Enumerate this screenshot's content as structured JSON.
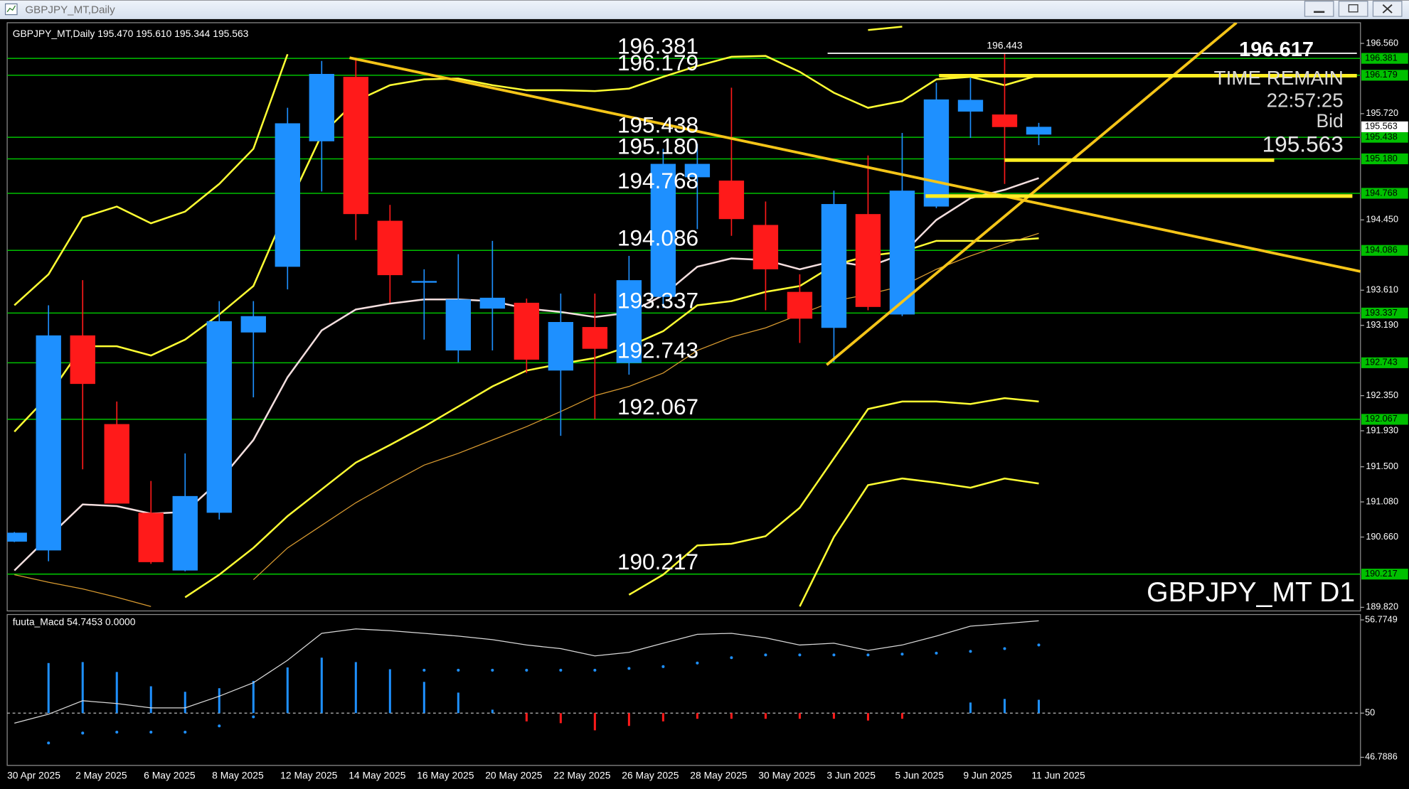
{
  "window": {
    "title": "GBPJPY_MT,Daily"
  },
  "chart_data": [
    {
      "type": "candlestick",
      "title": "GBPJPY_MT,Daily  195.470 195.610 195.344 195.563",
      "categories": [
        "30 Apr 2025",
        null,
        "2 May 2025",
        null,
        "6 May 2025",
        null,
        "8 May 2025",
        null,
        "12 May 2025",
        null,
        "14 May 2025",
        null,
        "16 May 2025",
        null,
        "20 May 2025",
        null,
        "22 May 2025",
        null,
        "26 May 2025",
        null,
        "28 May 2025",
        null,
        "30 May 2025",
        null,
        "3 Jun 2025",
        null,
        "5 Jun 2025",
        null,
        "9 Jun 2025",
        null,
        "11 Jun 2025"
      ],
      "open": [
        190.605,
        190.5,
        193.07,
        192.01,
        190.95,
        190.26,
        190.95,
        193.105,
        193.89,
        195.39,
        196.16,
        194.44,
        193.7,
        192.89,
        193.39,
        193.46,
        192.65,
        193.17,
        192.74,
        193.53,
        194.96,
        194.92,
        194.39,
        193.59,
        193.16,
        194.52,
        193.32,
        194.61,
        195.745,
        195.71,
        195.47
      ],
      "high": [
        190.72,
        193.43,
        193.73,
        192.28,
        191.33,
        191.66,
        193.48,
        193.48,
        195.79,
        196.35,
        196.39,
        194.63,
        193.86,
        194.04,
        194.2,
        193.51,
        193.57,
        193.57,
        194.02,
        195.3,
        195.36,
        196.03,
        194.67,
        193.8,
        194.8,
        195.22,
        195.49,
        196.09,
        196.16,
        196.443,
        195.61
      ],
      "low": [
        190.6,
        190.37,
        191.47,
        191.06,
        190.34,
        190.25,
        190.87,
        192.33,
        193.62,
        194.79,
        194.21,
        193.46,
        193.02,
        192.75,
        192.89,
        192.62,
        191.87,
        192.07,
        192.6,
        193.4,
        194.34,
        194.26,
        193.37,
        192.98,
        192.75,
        193.37,
        193.3,
        194.59,
        195.43,
        194.88,
        195.344
      ],
      "close": [
        190.712,
        193.07,
        192.49,
        191.06,
        190.36,
        191.15,
        193.24,
        193.3,
        195.605,
        196.195,
        194.52,
        193.79,
        193.72,
        193.5,
        193.52,
        192.78,
        193.23,
        192.91,
        193.73,
        195.12,
        195.12,
        194.46,
        193.86,
        193.27,
        194.64,
        193.41,
        194.8,
        195.89,
        195.885,
        195.56,
        195.563
      ],
      "up_color": "#1e90ff",
      "down_color": "#ff1a1a",
      "ylim": [
        189.777,
        196.807
      ],
      "yticks": [
        {
          "value": 196.56,
          "label": "196.560"
        },
        {
          "value": 195.72,
          "label": "195.720"
        },
        {
          "value": 194.45,
          "label": "194.450"
        },
        {
          "value": 193.61,
          "label": "193.610"
        },
        {
          "value": 193.19,
          "label": "193.190"
        },
        {
          "value": 192.35,
          "label": "192.350"
        },
        {
          "value": 191.93,
          "label": "191.930"
        },
        {
          "value": 191.5,
          "label": "191.500"
        },
        {
          "value": 191.08,
          "label": "191.080"
        },
        {
          "value": 190.66,
          "label": "190.660"
        },
        {
          "value": 189.82,
          "label": "189.820"
        }
      ],
      "grid": false,
      "levels": [
        196.381,
        196.179,
        {
          "value": 195.438,
          "label": "195.438"
        },
        {
          "value": 195.18,
          "label": "195.180"
        },
        194.768,
        194.086,
        193.337,
        192.743,
        192.067,
        190.217
      ],
      "level_color": "#00c000",
      "bid": 195.563,
      "high_label": {
        "value": 196.443,
        "label": "196.443",
        "index": 29
      },
      "overlays": [
        {
          "color": "#f3dede",
          "width": 2,
          "values": [
            190.26,
            190.66,
            191.05,
            191.03,
            190.94,
            190.96,
            191.33,
            191.82,
            192.57,
            193.13,
            193.38,
            193.45,
            193.5,
            193.5,
            193.48,
            193.39,
            193.35,
            193.29,
            193.34,
            193.55,
            193.89,
            193.99,
            193.97,
            193.86,
            193.96,
            193.89,
            194.04,
            194.45,
            194.71,
            194.81,
            194.95
          ]
        },
        {
          "color": "#ffff33",
          "width": 2,
          "values": [
            191.92,
            192.35,
            192.94,
            192.94,
            192.83,
            193.02,
            193.32,
            193.66,
            194.6,
            195.47,
            195.87,
            196.06,
            196.13,
            196.14,
            196.06,
            196.0,
            196.0,
            195.99,
            196.02,
            196.16,
            196.29,
            196.4,
            196.41,
            196.22,
            195.97,
            195.79,
            195.87,
            196.13,
            196.16,
            196.06,
            196.18
          ]
        },
        {
          "color": "#ffff33",
          "width": 2,
          "values": [
            null,
            null,
            null,
            null,
            null,
            189.94,
            190.21,
            190.53,
            190.91,
            191.23,
            191.55,
            191.76,
            191.98,
            192.22,
            192.46,
            192.65,
            192.73,
            192.8,
            192.94,
            193.12,
            193.43,
            193.48,
            193.59,
            193.66,
            193.91,
            194.02,
            194.07,
            194.2,
            194.2,
            194.2,
            194.23
          ]
        },
        {
          "color": "#ffff33",
          "width": 2,
          "values": [
            193.43,
            193.8,
            194.48,
            194.61,
            194.41,
            194.55,
            194.88,
            195.3,
            196.43,
            null,
            null,
            null,
            null,
            null,
            null,
            null,
            null,
            null,
            null,
            null,
            null,
            null,
            null,
            null,
            null,
            196.72,
            196.76,
            null,
            null,
            null,
            null
          ]
        },
        {
          "color": "#ffff33",
          "width": 2,
          "values": [
            null,
            null,
            null,
            null,
            null,
            null,
            null,
            null,
            null,
            null,
            null,
            null,
            null,
            null,
            null,
            null,
            null,
            null,
            189.97,
            190.21,
            190.56,
            190.58,
            190.67,
            191.01,
            191.6,
            192.19,
            192.28,
            192.28,
            192.25,
            192.32,
            192.28
          ]
        },
        {
          "color": "#ffff33",
          "width": 2,
          "values": [
            null,
            null,
            null,
            null,
            null,
            null,
            null,
            null,
            null,
            null,
            null,
            null,
            null,
            null,
            null,
            null,
            null,
            null,
            null,
            null,
            null,
            null,
            null,
            189.83,
            190.66,
            191.28,
            191.36,
            191.31,
            191.25,
            191.36,
            191.3
          ]
        },
        {
          "color": "#d89a30",
          "width": 1,
          "values": [
            190.21,
            190.12,
            190.04,
            189.94,
            189.83,
            null,
            null,
            190.15,
            190.53,
            190.8,
            191.07,
            191.3,
            191.52,
            191.66,
            191.82,
            191.98,
            192.16,
            192.35,
            192.46,
            192.62,
            192.89,
            193.05,
            193.16,
            193.32,
            193.48,
            193.56,
            193.66,
            193.86,
            194.02,
            194.16,
            194.29
          ]
        }
      ],
      "annotations": {
        "countdown_price": 196.617,
        "time_remain": "TIME REMAIN",
        "countdown": "22:57:25",
        "bid_label": "Bid",
        "bid_price": 195.563,
        "symbol": "GBPJPY_MT D1"
      }
    },
    {
      "type": "macd",
      "title": "fuuta_Macd 54.7453 0.0000",
      "ylim": [
        46.7886,
        56.7749
      ],
      "yticks": [
        56.7749,
        50,
        46.7886
      ],
      "baseline": 50,
      "up_color": "#1e90ff",
      "down_color": "#ff1a1a",
      "line_color": "#d8d8d8",
      "dot_color": "#1e90ff",
      "histogram": [
        null,
        53.64,
        53.71,
        52.99,
        51.95,
        51.55,
        51.81,
        52.34,
        53.32,
        54.03,
        53.71,
        53.19,
        52.27,
        51.49,
        50.25,
        49.4,
        49.27,
        48.75,
        49.07,
        49.4,
        49.59,
        49.59,
        49.59,
        49.59,
        49.59,
        49.46,
        49.59,
        null,
        50.77,
        51.03,
        50.97
      ],
      "line": [
        49.27,
        49.92,
        50.9,
        50.7,
        50.38,
        50.38,
        51.23,
        52.21,
        53.84,
        55.8,
        56.12,
        55.99,
        55.8,
        55.6,
        55.34,
        54.95,
        54.69,
        54.16,
        54.42,
        55.08,
        55.73,
        55.8,
        55.47,
        54.95,
        55.08,
        54.56,
        54.95,
        55.6,
        56.32,
        56.51,
        56.71
      ],
      "signal_dots": [
        null,
        47.83,
        48.55,
        48.62,
        48.62,
        48.62,
        49.07,
        49.73,
        null,
        null,
        null,
        null,
        53.12,
        53.12,
        53.12,
        53.12,
        53.12,
        53.12,
        53.25,
        53.38,
        53.64,
        54.03,
        54.23,
        54.23,
        54.23,
        54.23,
        54.29,
        54.36,
        54.49,
        54.69,
        54.95
      ]
    }
  ]
}
